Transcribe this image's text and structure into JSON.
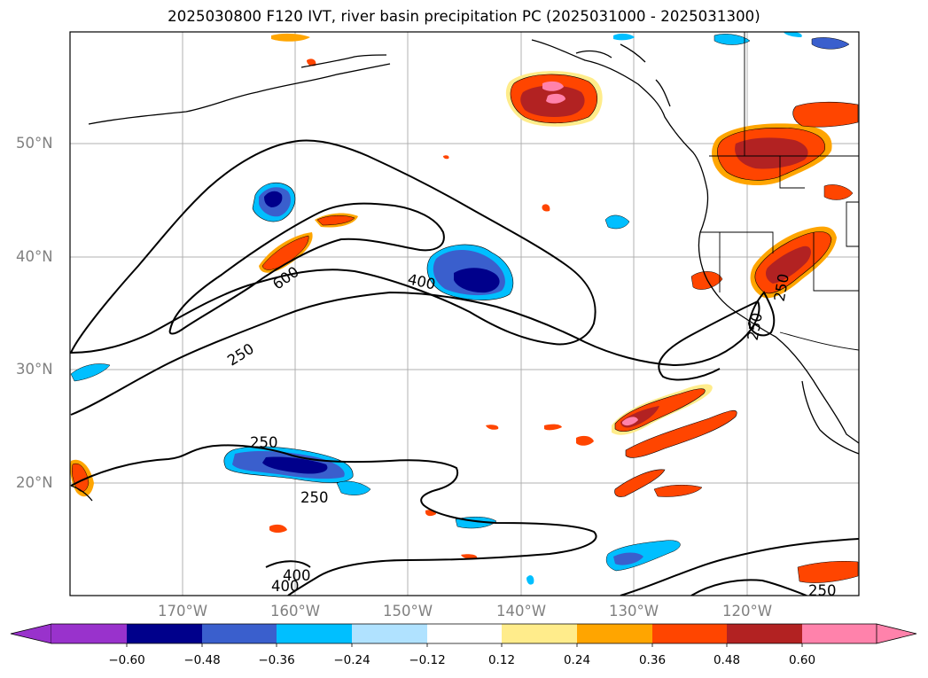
{
  "title": "2025030800 F120 IVT, river basin precipitation PC (2025031000 - 2025031300)",
  "lat_labels": [
    "50°N",
    "40°N",
    "30°N",
    "20°N"
  ],
  "lon_labels": [
    "170°W",
    "160°W",
    "150°W",
    "140°W",
    "130°W",
    "120°W"
  ],
  "ivt_contour_labels": [
    "600",
    "400",
    "250",
    "250",
    "250",
    "400",
    "400",
    "250",
    "250",
    "250"
  ],
  "colorbar": {
    "tick_labels": [
      "−0.60",
      "−0.48",
      "−0.36",
      "−0.24",
      "−0.12",
      "0.12",
      "0.24",
      "0.36",
      "0.48",
      "0.60"
    ],
    "colors": [
      "#9932cc",
      "#00008b",
      "#3a5fcd",
      "#00bfff",
      "#b0e2ff",
      "#ffffff",
      "#ffec8b",
      "#ffa500",
      "#ff4500",
      "#b22222",
      "#ff82ab"
    ]
  }
}
